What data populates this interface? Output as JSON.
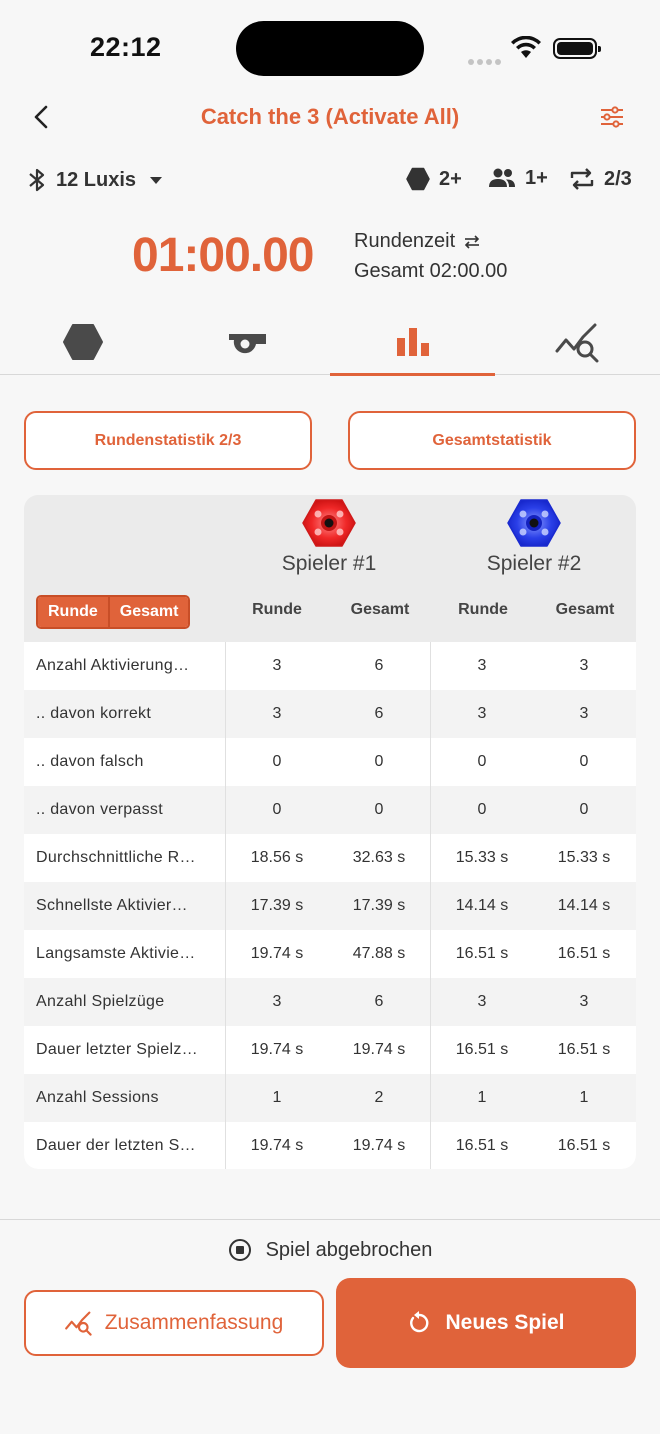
{
  "status": {
    "time": "22:12"
  },
  "header": {
    "title": "Catch the 3 (Activate All)"
  },
  "info": {
    "device": "12 Luxis",
    "pods": "2+",
    "players": "1+",
    "rounds": "2/3"
  },
  "timer": {
    "value": "01:00.00",
    "label": "Rundenzeit",
    "total": "Gesamt 02:00.00"
  },
  "tabs": [
    {
      "icon": "hexagon-icon",
      "active": false
    },
    {
      "icon": "whistle-icon",
      "active": false
    },
    {
      "icon": "bar-chart-icon",
      "active": true
    },
    {
      "icon": "analytics-icon",
      "active": false
    }
  ],
  "stat_buttons": {
    "round": "Rundenstatistik 2/3",
    "total": "Gesamtstatistik"
  },
  "table": {
    "toggle": [
      "Runde",
      "Gesamt"
    ],
    "players": [
      {
        "name": "Spieler #1",
        "color": "#e82020"
      },
      {
        "name": "Spieler #2",
        "color": "#2a3fe0"
      }
    ],
    "columns": [
      "Runde",
      "Gesamt",
      "Runde",
      "Gesamt"
    ],
    "rows": [
      {
        "label": "Anzahl Aktivierung…",
        "values": [
          "3",
          "6",
          "3",
          "3"
        ]
      },
      {
        "label": ".. davon korrekt",
        "values": [
          "3",
          "6",
          "3",
          "3"
        ]
      },
      {
        "label": ".. davon falsch",
        "values": [
          "0",
          "0",
          "0",
          "0"
        ]
      },
      {
        "label": ".. davon verpasst",
        "values": [
          "0",
          "0",
          "0",
          "0"
        ]
      },
      {
        "label": "Durchschnittliche R…",
        "values": [
          "18.56 s",
          "32.63 s",
          "15.33 s",
          "15.33 s"
        ]
      },
      {
        "label": "Schnellste Aktivier…",
        "values": [
          "17.39 s",
          "17.39 s",
          "14.14 s",
          "14.14 s"
        ]
      },
      {
        "label": "Langsamste Aktivie…",
        "values": [
          "19.74 s",
          "47.88 s",
          "16.51 s",
          "16.51 s"
        ]
      },
      {
        "label": "Anzahl Spielzüge",
        "values": [
          "3",
          "6",
          "3",
          "3"
        ]
      },
      {
        "label": "Dauer letzter Spielz…",
        "values": [
          "19.74 s",
          "19.74 s",
          "16.51 s",
          "16.51 s"
        ]
      },
      {
        "label": "Anzahl Sessions",
        "values": [
          "1",
          "2",
          "1",
          "1"
        ]
      },
      {
        "label": "Dauer der letzten S…",
        "values": [
          "19.74 s",
          "19.74 s",
          "16.51 s",
          "16.51 s"
        ]
      }
    ]
  },
  "footer": {
    "status": "Spiel abgebrochen",
    "summary": "Zusammenfassung",
    "new_game": "Neues Spiel"
  },
  "colors": {
    "accent": "#e0633a"
  }
}
